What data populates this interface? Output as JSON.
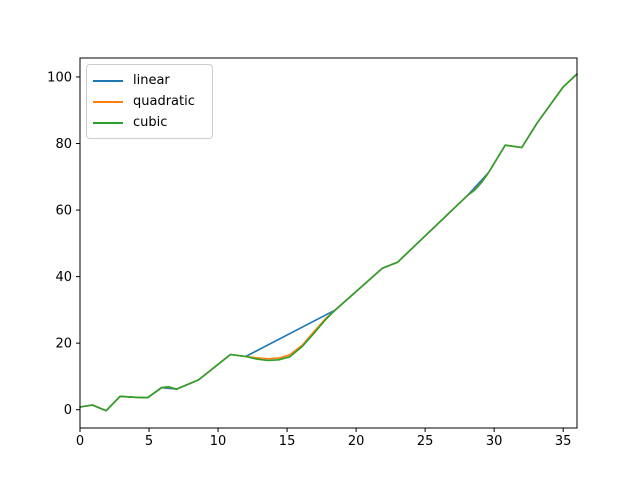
{
  "figure": {
    "background": "#ffffff",
    "title": ""
  },
  "chart_data": {
    "type": "line",
    "title": "",
    "xlabel": "",
    "ylabel": "",
    "xlim": [
      0,
      36
    ],
    "ylim": [
      -5.5,
      105.7
    ],
    "xticks": [
      0,
      5,
      10,
      15,
      20,
      25,
      30,
      35
    ],
    "yticks": [
      0,
      20,
      40,
      60,
      80,
      100
    ],
    "grid": false,
    "axis_color": "#000000",
    "legend": {
      "position": "upper left",
      "entries": [
        "linear",
        "quadratic",
        "cubic"
      ]
    },
    "series": [
      {
        "name": "linear",
        "color": "#1f77b4",
        "points": [
          [
            0,
            0.8
          ],
          [
            0.9,
            1.4
          ],
          [
            1.9,
            -0.3
          ],
          [
            2.9,
            4.0
          ],
          [
            4.2,
            3.7
          ],
          [
            4.9,
            3.6
          ],
          [
            5.9,
            6.6
          ],
          [
            7.0,
            6.2
          ],
          [
            8.6,
            9.0
          ],
          [
            10.9,
            16.6
          ],
          [
            12.0,
            16.0
          ],
          [
            18.5,
            30.0
          ],
          [
            21.9,
            42.5
          ],
          [
            23.0,
            44.3
          ],
          [
            28.1,
            64.5
          ],
          [
            29.6,
            71.3
          ],
          [
            30.8,
            79.5
          ],
          [
            32.0,
            78.8
          ],
          [
            33.1,
            86.1
          ],
          [
            35.0,
            97.0
          ],
          [
            36.0,
            100.9
          ]
        ]
      },
      {
        "name": "quadratic",
        "color": "#ff7f0e",
        "points": [
          [
            0,
            0.8
          ],
          [
            0.9,
            1.4
          ],
          [
            1.9,
            -0.3
          ],
          [
            2.9,
            4.0
          ],
          [
            4.2,
            3.7
          ],
          [
            4.9,
            3.6
          ],
          [
            5.9,
            6.6
          ],
          [
            6.4,
            6.8
          ],
          [
            7.0,
            6.2
          ],
          [
            8.6,
            9.0
          ],
          [
            10.9,
            16.6
          ],
          [
            12.0,
            16.0
          ],
          [
            12.8,
            15.6
          ],
          [
            13.6,
            15.3
          ],
          [
            14.4,
            15.5
          ],
          [
            15.2,
            16.5
          ],
          [
            16.1,
            19.4
          ],
          [
            17.0,
            23.7
          ],
          [
            17.8,
            27.4
          ],
          [
            18.5,
            30.0
          ],
          [
            21.9,
            42.5
          ],
          [
            23.0,
            44.3
          ],
          [
            28.1,
            64.5
          ],
          [
            28.6,
            66.1
          ],
          [
            29.1,
            68.4
          ],
          [
            29.6,
            71.3
          ],
          [
            30.8,
            79.5
          ],
          [
            32.0,
            78.8
          ],
          [
            33.1,
            86.1
          ],
          [
            35.0,
            97.0
          ],
          [
            36.0,
            100.9
          ]
        ]
      },
      {
        "name": "cubic",
        "color": "#2ca02c",
        "points": [
          [
            0,
            0.8
          ],
          [
            0.9,
            1.4
          ],
          [
            1.9,
            -0.3
          ],
          [
            2.9,
            4.0
          ],
          [
            4.2,
            3.7
          ],
          [
            4.9,
            3.6
          ],
          [
            5.9,
            6.6
          ],
          [
            6.4,
            6.9
          ],
          [
            7.0,
            6.2
          ],
          [
            8.6,
            9.0
          ],
          [
            10.9,
            16.6
          ],
          [
            12.0,
            16.0
          ],
          [
            12.8,
            15.2
          ],
          [
            13.6,
            14.8
          ],
          [
            14.4,
            15.0
          ],
          [
            15.2,
            15.9
          ],
          [
            16.1,
            19.0
          ],
          [
            17.0,
            23.2
          ],
          [
            17.8,
            27.1
          ],
          [
            18.5,
            30.0
          ],
          [
            21.9,
            42.5
          ],
          [
            23.0,
            44.3
          ],
          [
            28.1,
            64.5
          ],
          [
            28.6,
            66.0
          ],
          [
            29.1,
            68.3
          ],
          [
            29.6,
            71.3
          ],
          [
            30.8,
            79.5
          ],
          [
            32.0,
            78.8
          ],
          [
            33.1,
            86.1
          ],
          [
            35.0,
            97.0
          ],
          [
            36.0,
            100.9
          ]
        ]
      }
    ]
  }
}
